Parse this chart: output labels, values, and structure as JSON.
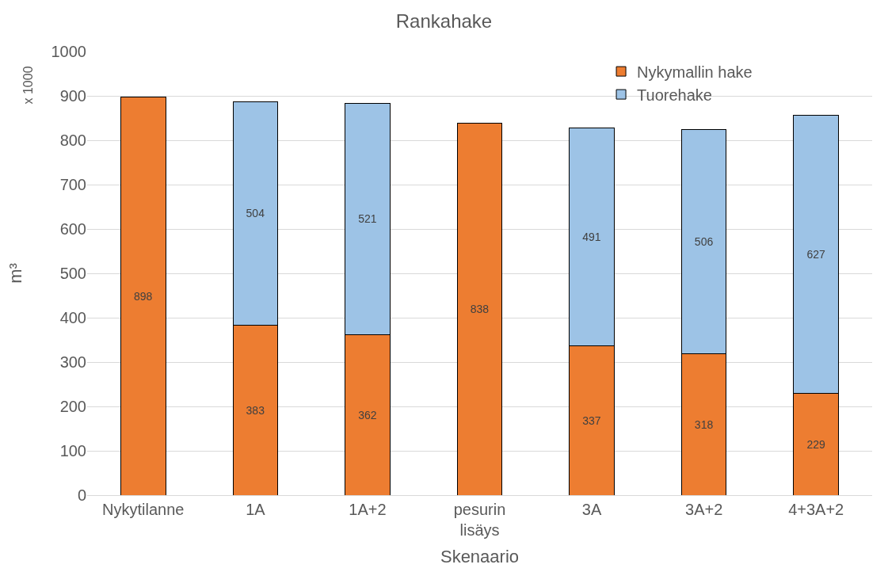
{
  "chart_data": {
    "type": "bar",
    "title": "Rankahake",
    "xlabel": "Skenaario",
    "ylabel": "m³",
    "stacked": true,
    "data_labels": true,
    "categories": [
      "Nykytilanne",
      "1A",
      "1A+2",
      "pesurin lisäys",
      "3A",
      "3A+2",
      "4+3A+2"
    ],
    "series": [
      {
        "name": "Nykymallin hake",
        "color": "#ed7d31",
        "values": [
          898,
          383,
          362,
          838,
          337,
          318,
          229
        ]
      },
      {
        "name": "Tuorehake",
        "color": "#9dc3e6",
        "values": [
          null,
          504,
          521,
          null,
          491,
          506,
          627
        ]
      }
    ],
    "ylim": [
      0,
      1000
    ],
    "yticks": [
      0,
      100,
      200,
      300,
      400,
      500,
      600,
      700,
      800,
      900,
      1000
    ],
    "grid": "y",
    "legend": "top right",
    "annotations": [
      "x 1000"
    ]
  }
}
